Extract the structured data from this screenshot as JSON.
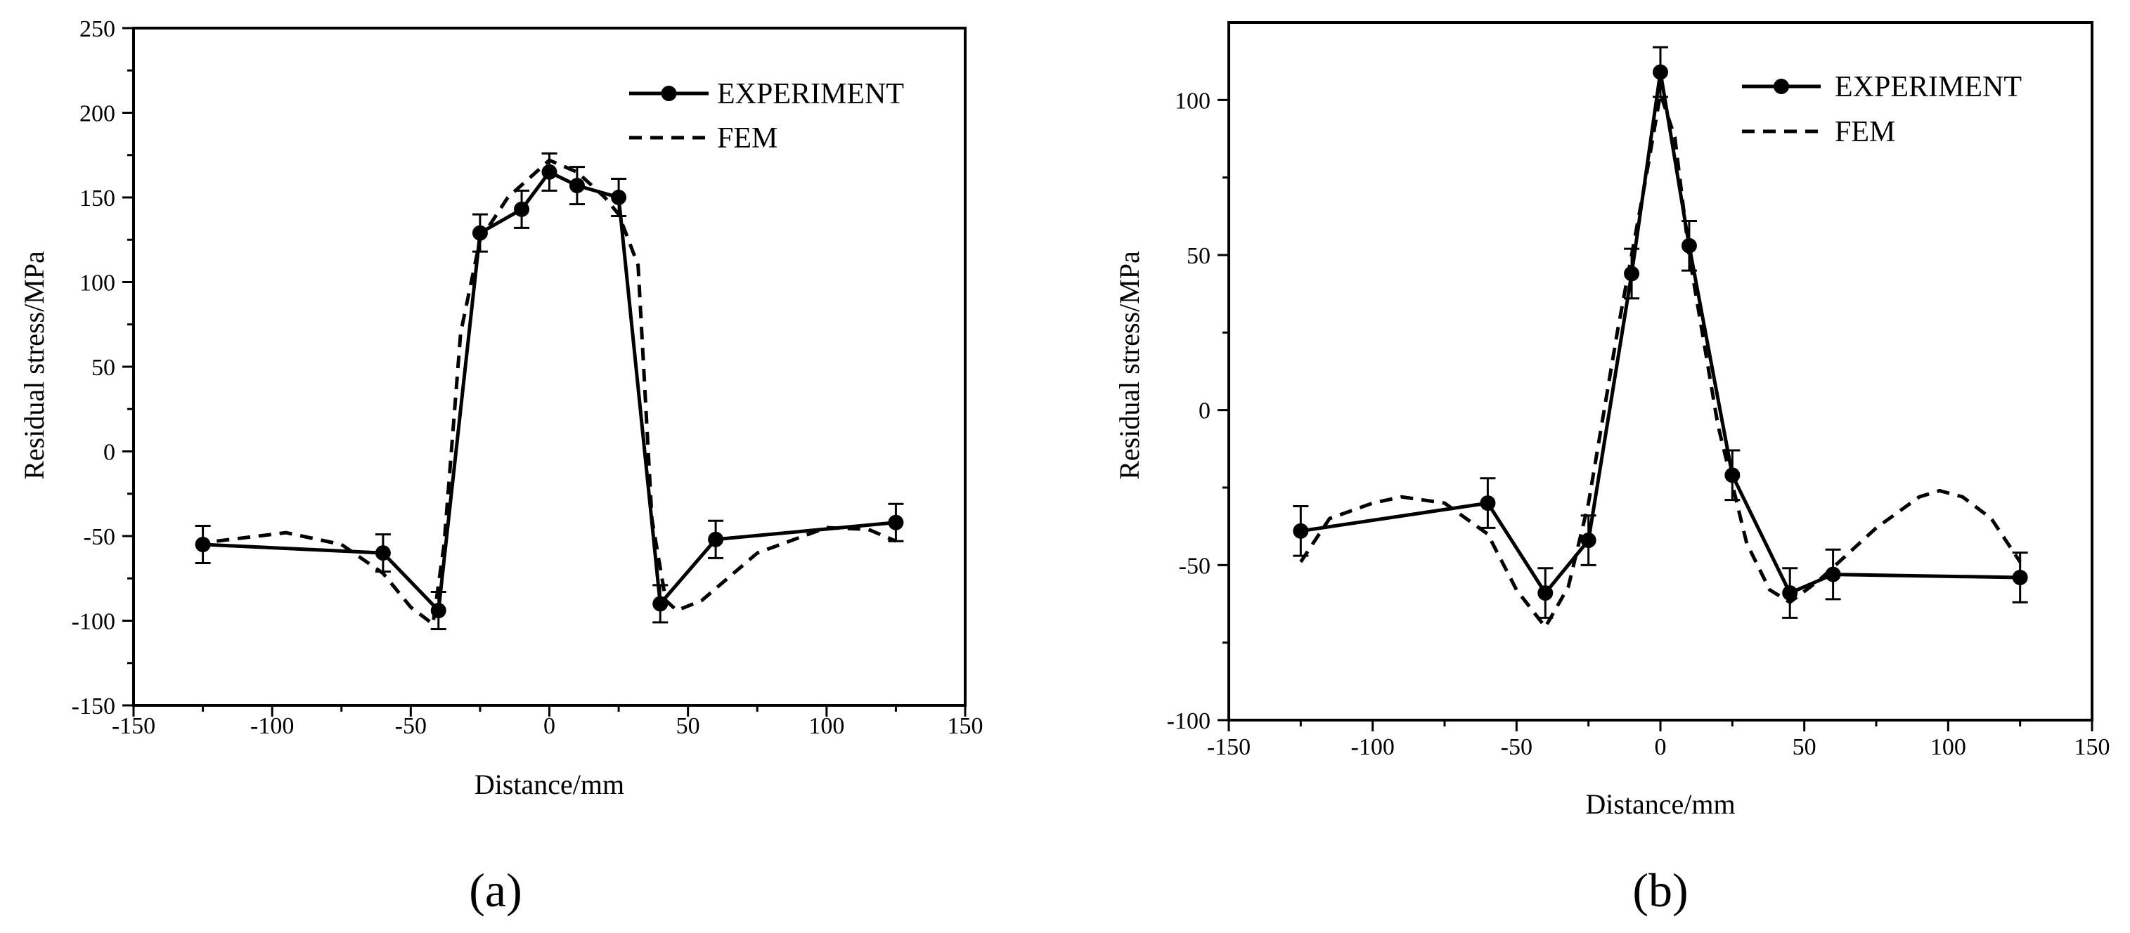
{
  "chart_data": [
    {
      "panel_label": "(a)",
      "type": "line",
      "xlabel": "Distance/mm",
      "ylabel": "Residual stress/MPa",
      "xlim": [
        -150,
        150
      ],
      "ylim": [
        -150,
        250
      ],
      "xticks": [
        -150,
        -100,
        -50,
        0,
        50,
        100,
        150
      ],
      "yticks": [
        -150,
        -100,
        -50,
        0,
        50,
        100,
        150,
        200,
        250
      ],
      "legend_position": "top-right",
      "series": [
        {
          "name": "EXPERIMENT",
          "style": "solid-markers",
          "x": [
            -125,
            -60,
            -40,
            -25,
            -10,
            0,
            10,
            25,
            40,
            60,
            125
          ],
          "y": [
            -55,
            -60,
            -94,
            129,
            143,
            165,
            157,
            150,
            -90,
            -52,
            -42
          ],
          "error": [
            11,
            11,
            11,
            11,
            11,
            11,
            11,
            11,
            11,
            11,
            11
          ]
        },
        {
          "name": "FEM",
          "style": "dashed",
          "x": [
            -120,
            -95,
            -75,
            -60,
            -50,
            -42,
            -38,
            -32,
            -25,
            -15,
            0,
            10,
            20,
            25,
            32,
            37,
            42,
            46,
            55,
            75,
            100,
            115,
            125
          ],
          "y": [
            -53,
            -48,
            -55,
            -72,
            -92,
            -102,
            -55,
            70,
            125,
            150,
            172,
            165,
            150,
            140,
            110,
            -40,
            -88,
            -94,
            -88,
            -60,
            -45,
            -46,
            -53
          ]
        }
      ]
    },
    {
      "panel_label": "(b)",
      "type": "line",
      "xlabel": "Distance/mm",
      "ylabel": "Residual stress/MPa",
      "xlim": [
        -150,
        150
      ],
      "ylim": [
        -100,
        125
      ],
      "xticks": [
        -150,
        -100,
        -50,
        0,
        50,
        100,
        150
      ],
      "yticks": [
        -100,
        -50,
        0,
        50,
        100
      ],
      "legend_position": "top-right",
      "series": [
        {
          "name": "EXPERIMENT",
          "style": "solid-markers",
          "x": [
            -125,
            -60,
            -40,
            -25,
            -10,
            0,
            10,
            25,
            45,
            60,
            125
          ],
          "y": [
            -39,
            -30,
            -59,
            -42,
            44,
            109,
            53,
            -21,
            -59,
            -53,
            -54
          ],
          "error": [
            8,
            8,
            8,
            8,
            8,
            8,
            8,
            8,
            8,
            8,
            8
          ]
        },
        {
          "name": "FEM",
          "style": "dashed",
          "x": [
            -125,
            -115,
            -100,
            -90,
            -75,
            -60,
            -50,
            -40,
            -32,
            -25,
            -15,
            -5,
            0,
            5,
            10,
            20,
            30,
            38,
            45,
            55,
            75,
            90,
            97,
            105,
            115,
            125
          ],
          "y": [
            -49,
            -35,
            -30,
            -28,
            -30,
            -40,
            -58,
            -70,
            -57,
            -30,
            25,
            75,
            102,
            88,
            50,
            -5,
            -43,
            -58,
            -62,
            -55,
            -38,
            -28,
            -26,
            -28,
            -35,
            -49
          ]
        }
      ]
    }
  ]
}
